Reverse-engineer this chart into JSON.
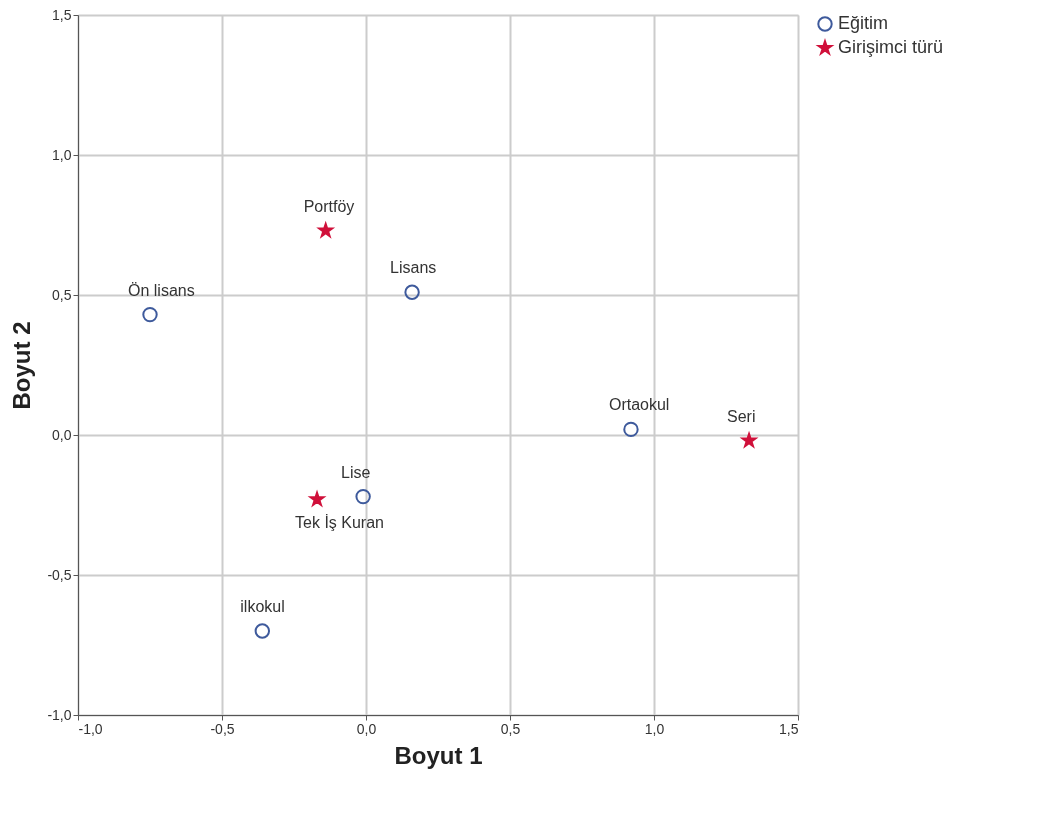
{
  "chart_data": {
    "type": "scatter",
    "xlabel": "Boyut 1",
    "ylabel": "Boyut 2",
    "xlim": [
      -1.0,
      1.5
    ],
    "ylim": [
      -1.0,
      1.5
    ],
    "xticks": [
      {
        "value": -1.0,
        "label": "-1,0"
      },
      {
        "value": -0.5,
        "label": "-0,5"
      },
      {
        "value": 0.0,
        "label": "0,0"
      },
      {
        "value": 0.5,
        "label": "0,5"
      },
      {
        "value": 1.0,
        "label": "1,0"
      },
      {
        "value": 1.5,
        "label": "1,5"
      }
    ],
    "yticks": [
      {
        "value": -1.0,
        "label": "-1,0"
      },
      {
        "value": -0.5,
        "label": "-0,5"
      },
      {
        "value": 0.0,
        "label": "0,0"
      },
      {
        "value": 0.5,
        "label": "0,5"
      },
      {
        "value": 1.0,
        "label": "1,0"
      },
      {
        "value": 1.5,
        "label": "1,5"
      }
    ],
    "grid": true,
    "legend": "top right",
    "series": [
      {
        "name": "Eğitim",
        "color": "#3e5a9c",
        "marker": "circle",
        "x": [
          -0.75,
          0.16,
          0.92,
          -0.01,
          -0.36
        ],
        "values": [
          0.43,
          0.51,
          0.02,
          -0.22,
          -0.7
        ]
      },
      {
        "name": "Girişimci türü",
        "color": "#d0103a",
        "marker": "star",
        "x": [
          -0.14,
          1.33,
          -0.17
        ],
        "values": [
          0.73,
          -0.02,
          -0.23
        ]
      }
    ],
    "annotations": [
      {
        "text": "Ön lisans",
        "x": -0.75,
        "y": 0.43
      },
      {
        "text": "Lisans",
        "x": 0.16,
        "y": 0.51
      },
      {
        "text": "Ortaokul",
        "x": 0.92,
        "y": 0.02
      },
      {
        "text": "Lise",
        "x": -0.01,
        "y": -0.22
      },
      {
        "text": "ilkokul",
        "x": -0.36,
        "y": -0.7
      },
      {
        "text": "Portföy",
        "x": -0.14,
        "y": 0.73
      },
      {
        "text": "Seri",
        "x": 1.33,
        "y": -0.02
      },
      {
        "text": "Tek İş Kuran",
        "x": -0.17,
        "y": -0.23
      }
    ]
  }
}
